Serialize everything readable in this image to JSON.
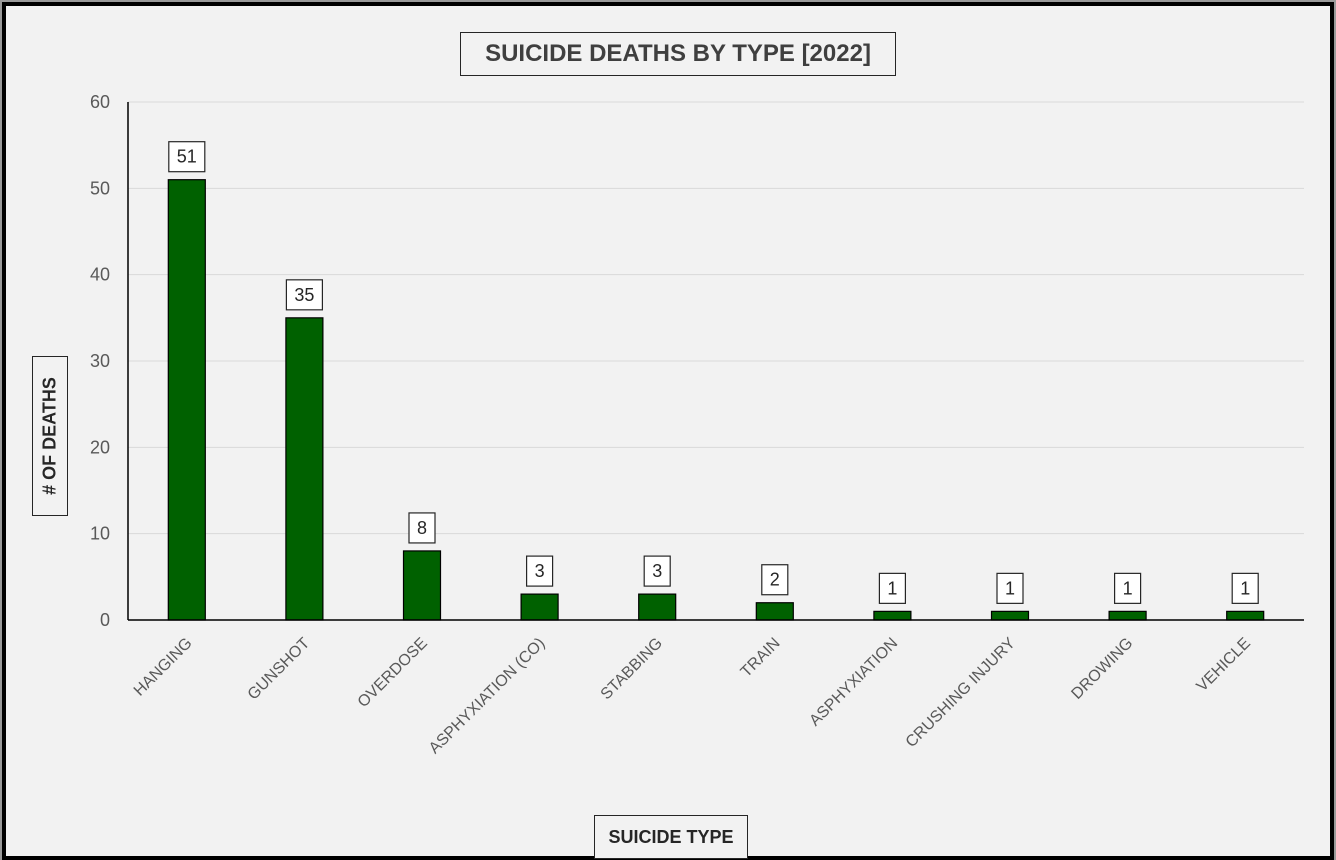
{
  "chart_data": {
    "type": "bar",
    "title": "SUICIDE DEATHS BY TYPE [2022]",
    "xlabel": "SUICIDE TYPE",
    "ylabel": "# OF DEATHS",
    "categories": [
      "HANGING",
      "GUNSHOT",
      "OVERDOSE",
      "ASPHYXIATION (CO)",
      "STABBING",
      "TRAIN",
      "ASPHYXIATION",
      "CRUSHING INJURY",
      "DROWING",
      "VEHICLE"
    ],
    "values": [
      51,
      35,
      8,
      3,
      3,
      2,
      1,
      1,
      1,
      1
    ],
    "ylim": [
      0,
      60
    ],
    "yticks": [
      0,
      10,
      20,
      30,
      40,
      50,
      60
    ],
    "grid": true,
    "data_labels": true,
    "bar_color": "#006100",
    "legend": "none"
  }
}
